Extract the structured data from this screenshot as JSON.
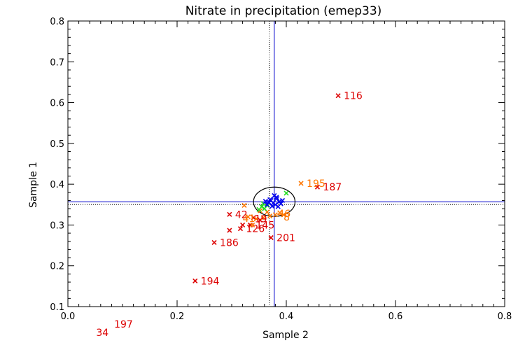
{
  "chart_data": {
    "type": "scatter",
    "title": "Nitrate in precipitation (emep33)",
    "xlabel": "Sample 2",
    "ylabel": "Sample 1",
    "xlim": [
      0.0,
      0.8
    ],
    "ylim": [
      0.1,
      0.8
    ],
    "x_ticks": [
      "0.0",
      "0.2",
      "0.4",
      "0.6",
      "0.8"
    ],
    "y_ticks": [
      "0.1",
      "0.2",
      "0.3",
      "0.4",
      "0.5",
      "0.6",
      "0.7",
      "0.8"
    ],
    "x_tick_values": [
      0.0,
      0.2,
      0.4,
      0.6,
      0.8
    ],
    "y_tick_values": [
      0.1,
      0.2,
      0.3,
      0.4,
      0.5,
      0.6,
      0.7,
      0.8
    ],
    "colors": {
      "red": "#dd0000",
      "orange": "#ff7700",
      "green": "#22dd22",
      "blue": "#0000ee",
      "lines": "#0000cc",
      "ellipse": "#000000"
    },
    "reference_lines": {
      "vertical_solid_x": 0.378,
      "horizontal_solid_y": 0.357,
      "vertical_dotted_x": 0.369,
      "horizontal_dotted_y": 0.35
    },
    "ellipse": {
      "cx": 0.378,
      "cy": 0.357,
      "rx": 0.038,
      "ry": 0.036
    },
    "series": [
      {
        "color": "red",
        "points": [
          {
            "x": 0.495,
            "y": 0.617,
            "label": "116"
          },
          {
            "x": 0.457,
            "y": 0.393,
            "label": "187"
          },
          {
            "x": 0.372,
            "y": 0.269,
            "label": "201"
          },
          {
            "x": 0.268,
            "y": 0.257,
            "label": "186"
          },
          {
            "x": 0.233,
            "y": 0.163,
            "label": "194"
          },
          {
            "x": 0.296,
            "y": 0.326,
            "label": "42"
          },
          {
            "x": 0.316,
            "y": 0.291,
            "label": "126"
          },
          {
            "x": 0.334,
            "y": 0.3,
            "label": "145"
          },
          {
            "x": 0.296,
            "y": 0.287,
            "label": ""
          },
          {
            "x": 0.34,
            "y": 0.318,
            "label": ""
          },
          {
            "x": 0.352,
            "y": 0.312,
            "label": ""
          },
          {
            "x": 0.32,
            "y": 0.3,
            "label": ""
          }
        ]
      },
      {
        "color": "orange",
        "points": [
          {
            "x": 0.427,
            "y": 0.402,
            "label": "195"
          },
          {
            "x": 0.323,
            "y": 0.348,
            "label": ""
          },
          {
            "x": 0.33,
            "y": 0.32,
            "label": ""
          },
          {
            "x": 0.345,
            "y": 0.315,
            "label": ""
          },
          {
            "x": 0.358,
            "y": 0.318,
            "label": ""
          },
          {
            "x": 0.37,
            "y": 0.322,
            "label": ""
          },
          {
            "x": 0.38,
            "y": 0.325,
            "label": ""
          },
          {
            "x": 0.388,
            "y": 0.33,
            "label": ""
          },
          {
            "x": 0.395,
            "y": 0.325,
            "label": ""
          },
          {
            "x": 0.338,
            "y": 0.3,
            "label": ""
          },
          {
            "x": 0.352,
            "y": 0.335,
            "label": ""
          },
          {
            "x": 0.365,
            "y": 0.332,
            "label": ""
          }
        ]
      },
      {
        "color": "green",
        "points": [
          {
            "x": 0.4,
            "y": 0.378,
            "label": ""
          },
          {
            "x": 0.355,
            "y": 0.345,
            "label": ""
          },
          {
            "x": 0.36,
            "y": 0.34,
            "label": ""
          },
          {
            "x": 0.365,
            "y": 0.348,
            "label": ""
          },
          {
            "x": 0.358,
            "y": 0.352,
            "label": ""
          },
          {
            "x": 0.35,
            "y": 0.338,
            "label": ""
          }
        ]
      },
      {
        "color": "blue",
        "points": [
          {
            "x": 0.378,
            "y": 0.372,
            "label": ""
          },
          {
            "x": 0.383,
            "y": 0.365,
            "label": ""
          },
          {
            "x": 0.372,
            "y": 0.36,
            "label": ""
          },
          {
            "x": 0.387,
            "y": 0.357,
            "label": ""
          },
          {
            "x": 0.376,
            "y": 0.354,
            "label": ""
          },
          {
            "x": 0.368,
            "y": 0.356,
            "label": ""
          },
          {
            "x": 0.38,
            "y": 0.35,
            "label": ""
          },
          {
            "x": 0.374,
            "y": 0.346,
            "label": ""
          },
          {
            "x": 0.39,
            "y": 0.352,
            "label": ""
          },
          {
            "x": 0.365,
            "y": 0.35,
            "label": ""
          },
          {
            "x": 0.385,
            "y": 0.345,
            "label": ""
          },
          {
            "x": 0.37,
            "y": 0.362,
            "label": ""
          },
          {
            "x": 0.393,
            "y": 0.36,
            "label": ""
          },
          {
            "x": 0.362,
            "y": 0.358,
            "label": ""
          },
          {
            "x": 0.382,
            "y": 0.368,
            "label": ""
          }
        ]
      }
    ],
    "overlap_labels": [
      {
        "x": 0.32,
        "y": 0.316,
        "text": "41",
        "color": "orange"
      },
      {
        "x": 0.342,
        "y": 0.315,
        "text": "19",
        "color": "red"
      },
      {
        "x": 0.385,
        "y": 0.328,
        "text": "46",
        "color": "orange"
      },
      {
        "x": 0.395,
        "y": 0.32,
        "text": "8",
        "color": "orange"
      }
    ],
    "outside_labels": [
      {
        "text": "197",
        "color": "red",
        "anchor": "below-x-axis",
        "x": 0.095
      },
      {
        "text": "34",
        "color": "red",
        "anchor": "below-x-axis",
        "x": 0.062
      }
    ]
  }
}
